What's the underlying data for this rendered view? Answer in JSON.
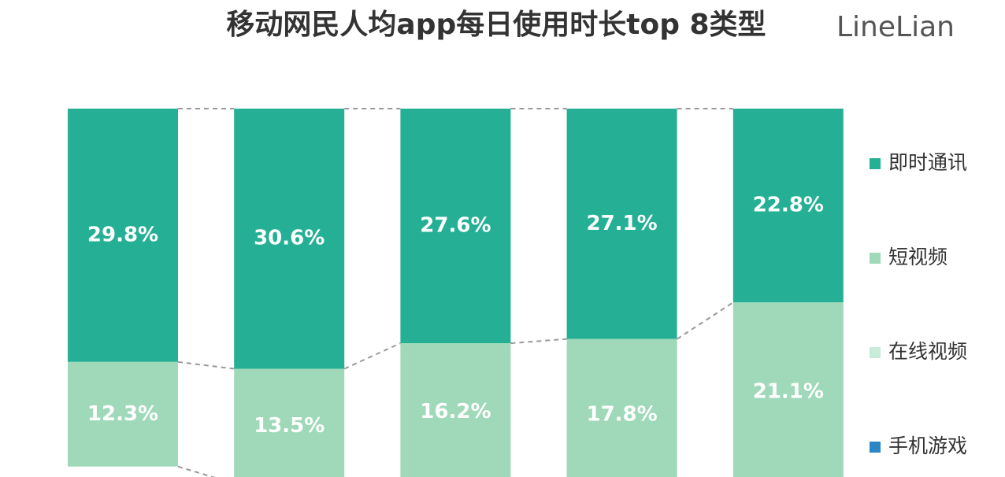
{
  "chart_data": {
    "type": "stacked-bar",
    "title": "移动网民人均app每日使用时长top 8类型",
    "watermark": "LineLian",
    "series": [
      {
        "name": "即时通讯",
        "color": "#25b096",
        "values": [
          29.8,
          30.6,
          27.6,
          27.1,
          22.8
        ],
        "value_labels": [
          "29.8%",
          "30.6%",
          "27.6%",
          "27.1%",
          "22.8%"
        ]
      },
      {
        "name": "短视频",
        "color": "#9fd9b9",
        "values": [
          12.3,
          13.5,
          16.2,
          17.8,
          21.1
        ],
        "value_labels": [
          "12.3%",
          "13.5%",
          "16.2%",
          "17.8%",
          "21.1%"
        ]
      },
      {
        "name": "在线视频",
        "color": "#c8ecd9",
        "values": [
          null,
          null,
          null,
          null,
          null
        ]
      },
      {
        "name": "手机游戏",
        "color": "#2a86c4",
        "values": [
          null,
          null,
          null,
          null,
          null
        ]
      }
    ]
  }
}
